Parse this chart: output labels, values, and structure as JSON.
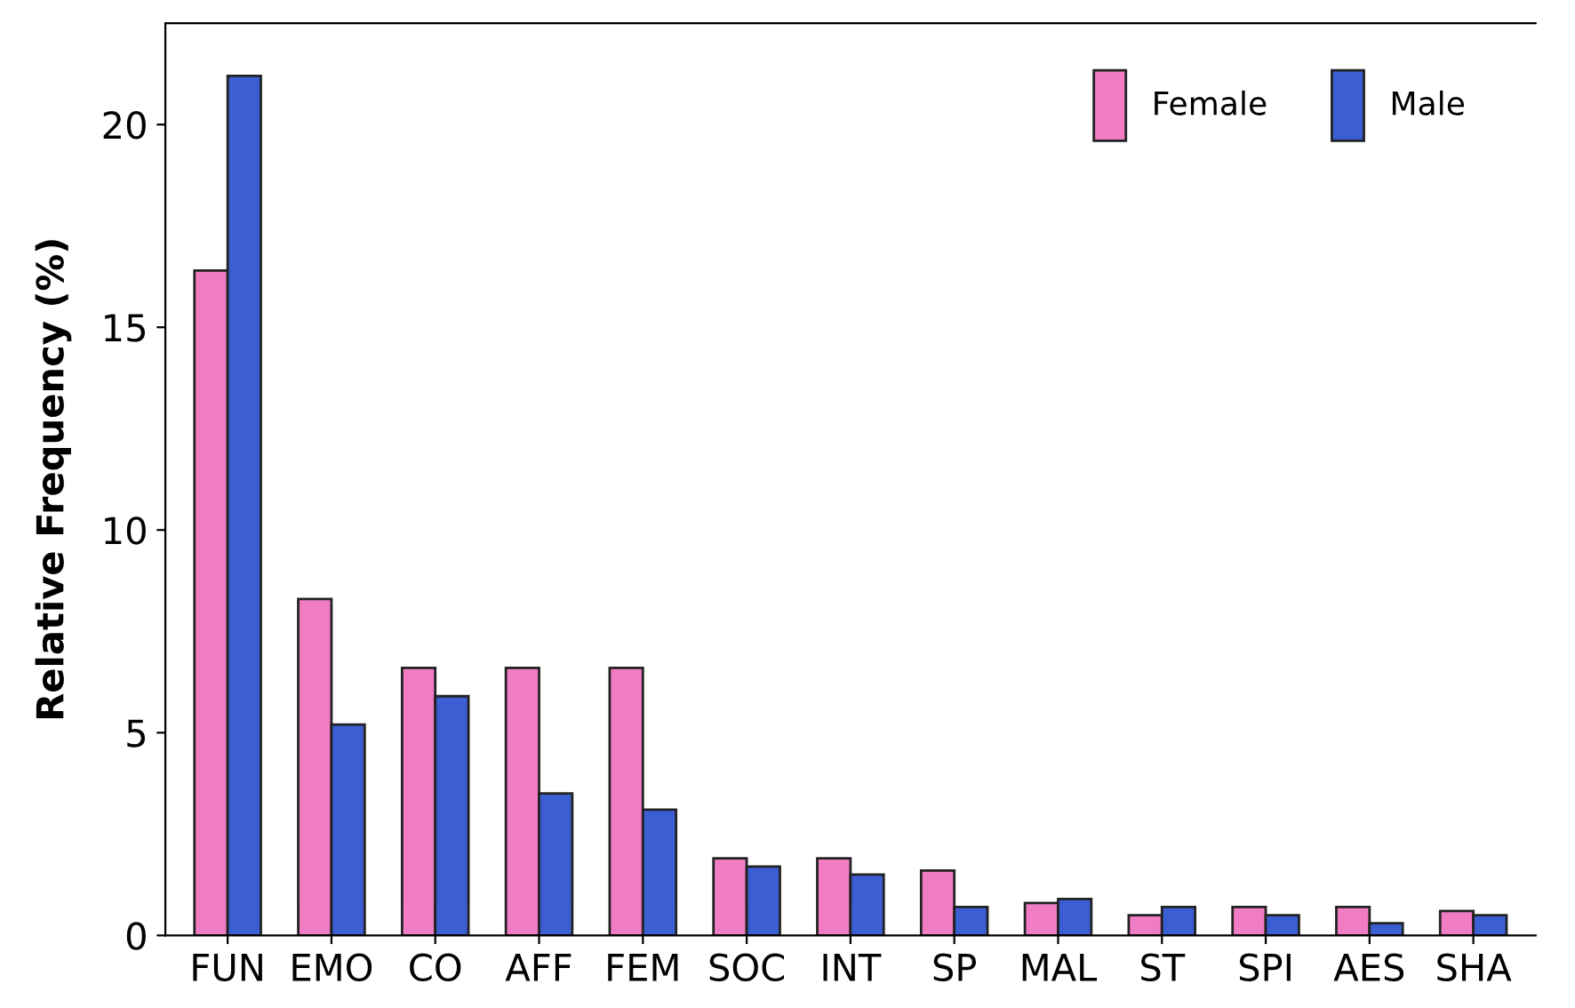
{
  "chart_data": {
    "type": "bar",
    "ylabel": "Relative Frequency (%)",
    "categories": [
      "FUN",
      "EMO",
      "CO",
      "AFF",
      "FEM",
      "SOC",
      "INT",
      "SP",
      "MAL",
      "ST",
      "SPI",
      "AES",
      "SHA"
    ],
    "series": [
      {
        "name": "Female",
        "color": "#f07cc4",
        "values": [
          16.4,
          8.3,
          6.6,
          6.6,
          6.6,
          1.9,
          1.9,
          1.6,
          0.8,
          0.5,
          0.7,
          0.7,
          0.6
        ]
      },
      {
        "name": "Male",
        "color": "#3b5fd3",
        "values": [
          21.2,
          5.2,
          5.9,
          3.5,
          3.1,
          1.7,
          1.5,
          0.7,
          0.9,
          0.7,
          0.5,
          0.3,
          0.5
        ]
      }
    ],
    "ylim": [
      0,
      22.5
    ],
    "yticks": [
      0,
      5,
      10,
      15,
      20
    ],
    "grid": false,
    "legend": "top right"
  }
}
